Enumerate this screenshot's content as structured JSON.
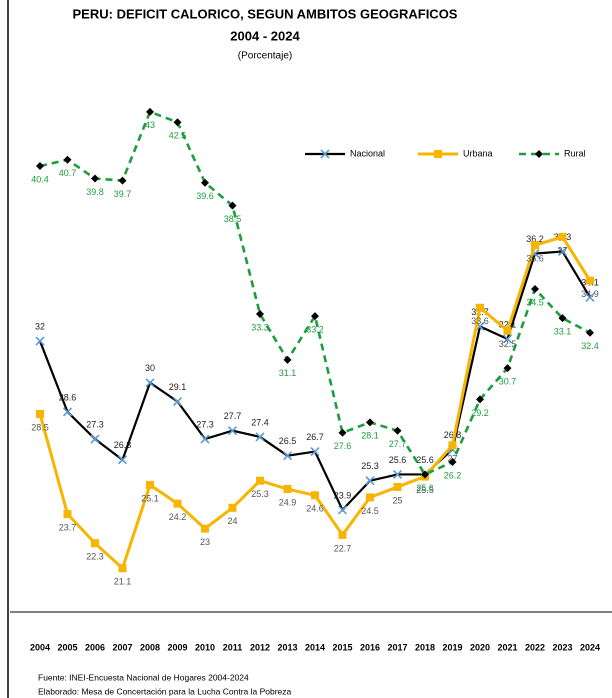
{
  "chart_data": {
    "type": "line",
    "title": "PERU: DEFICIT CALORICO, SEGUN AMBITOS GEOGRAFICOS",
    "subtitle": "2004 - 2024",
    "unit_label": "(Porcentaje)",
    "categories": [
      "2004",
      "2005",
      "2006",
      "2007",
      "2008",
      "2009",
      "2010",
      "2011",
      "2012",
      "2013",
      "2014",
      "2015",
      "2016",
      "2017",
      "2018",
      "2019",
      "2020",
      "2021",
      "2022",
      "2023",
      "2024"
    ],
    "series": [
      {
        "name": "Nacional",
        "color": "#000000",
        "marker_color": "#5b9bd5",
        "values": [
          32.0,
          28.6,
          27.3,
          26.3,
          30.0,
          29.1,
          27.3,
          27.7,
          27.4,
          26.5,
          26.7,
          23.9,
          25.3,
          25.6,
          25.6,
          26.8,
          32.7,
          32.1,
          36.2,
          36.3,
          34.1
        ]
      },
      {
        "name": "Urbana",
        "color": "#f7b500",
        "marker_color": "#f7b500",
        "values": [
          28.5,
          23.7,
          22.3,
          21.1,
          25.1,
          24.2,
          23.0,
          24.0,
          25.3,
          24.9,
          24.6,
          22.7,
          24.5,
          25.0,
          25.5,
          27.0,
          33.6,
          32.5,
          36.6,
          37.0,
          34.9
        ]
      },
      {
        "name": "Rural",
        "color": "#1f9d3e",
        "marker_color": "#000000",
        "values": [
          40.4,
          40.7,
          39.8,
          39.7,
          43.0,
          42.5,
          39.6,
          38.5,
          33.3,
          31.1,
          33.2,
          27.6,
          28.1,
          27.7,
          25.6,
          26.2,
          29.2,
          30.7,
          34.5,
          33.1,
          32.4
        ]
      }
    ],
    "ylim": [
      19,
      44
    ],
    "legend": "top-right",
    "source": "Fuente: INEI-Encuesta Nacional de Hogares 2004-2024",
    "credit": "Elaborado: Mesa de Concertación para la Lucha Contra la Pobreza"
  }
}
